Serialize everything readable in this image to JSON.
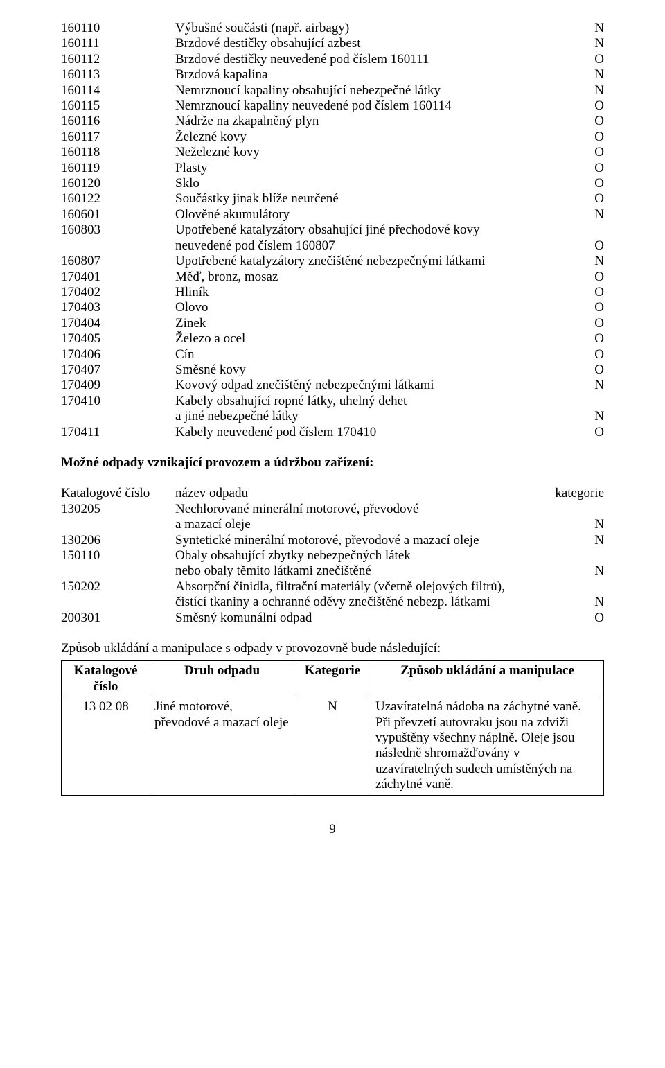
{
  "listA": [
    {
      "code": "160110",
      "desc": "Výbušné součásti (např. airbagy)",
      "cat": "N"
    },
    {
      "code": "160111",
      "desc": "Brzdové destičky obsahující azbest",
      "cat": "N"
    },
    {
      "code": "160112",
      "desc": "Brzdové destičky neuvedené pod číslem 160111",
      "cat": "O"
    },
    {
      "code": "160113",
      "desc": "Brzdová kapalina",
      "cat": "N"
    },
    {
      "code": "160114",
      "desc": "Nemrznoucí kapaliny obsahující nebezpečné látky",
      "cat": "N"
    },
    {
      "code": "160115",
      "desc": "Nemrznoucí kapaliny neuvedené pod číslem 160114",
      "cat": "O"
    },
    {
      "code": "160116",
      "desc": "Nádrže na zkapalněný plyn",
      "cat": "O"
    },
    {
      "code": "160117",
      "desc": "Železné kovy",
      "cat": "O"
    },
    {
      "code": "160118",
      "desc": "Neželezné kovy",
      "cat": "O"
    },
    {
      "code": "160119",
      "desc": "Plasty",
      "cat": "O"
    },
    {
      "code": "160120",
      "desc": "Sklo",
      "cat": "O"
    },
    {
      "code": "160122",
      "desc": "Součástky jinak blíže neurčené",
      "cat": "O"
    },
    {
      "code": "160601",
      "desc": "Olověné akumulátory",
      "cat": "N"
    },
    {
      "code": "160803",
      "desc": "Upotřebené katalyzátory obsahující jiné přechodové kovy",
      "cat": ""
    },
    {
      "code": "",
      "desc": "neuvedené pod číslem 160807",
      "cat": "O",
      "indent": true
    },
    {
      "code": "160807",
      "desc": "Upotřebené katalyzátory znečištěné nebezpečnými látkami",
      "cat": "N"
    },
    {
      "code": "170401",
      "desc": "Měď, bronz, mosaz",
      "cat": "O"
    },
    {
      "code": "170402",
      "desc": "Hliník",
      "cat": "O"
    },
    {
      "code": "170403",
      "desc": "Olovo",
      "cat": "O"
    },
    {
      "code": "170404",
      "desc": "Zinek",
      "cat": "O"
    },
    {
      "code": "170405",
      "desc": "Železo a ocel",
      "cat": "O"
    },
    {
      "code": "170406",
      "desc": "Cín",
      "cat": "O"
    },
    {
      "code": "170407",
      "desc": "Směsné kovy",
      "cat": "O"
    },
    {
      "code": "170409",
      "desc": "Kovový odpad znečištěný nebezpečnými látkami",
      "cat": "N"
    },
    {
      "code": "170410",
      "desc": "Kabely obsahující ropné látky, uhelný dehet",
      "cat": ""
    },
    {
      "code": "",
      "desc": "a jiné nebezpečné látky",
      "cat": "N",
      "indent": true
    },
    {
      "code": "170411",
      "desc": "Kabely neuvedené pod číslem 170410",
      "cat": "O"
    }
  ],
  "headingB": "Možné odpady vznikající provozem a údržbou zařízení:",
  "headerRow": {
    "c1": "Katalogové číslo",
    "c2": "název odpadu",
    "c3": "kategorie"
  },
  "listB": [
    {
      "code": "130205",
      "desc": "Nechlorované minerální motorové, převodové",
      "cat": ""
    },
    {
      "code": "",
      "desc": "a mazací oleje",
      "cat": "N",
      "indent": true
    },
    {
      "code": "130206",
      "desc": "Syntetické minerální motorové, převodové a mazací oleje",
      "cat": "N"
    },
    {
      "code": "150110",
      "desc": "Obaly obsahující zbytky nebezpečných látek",
      "cat": ""
    },
    {
      "code": "",
      "desc": "nebo obaly těmito látkami znečištěné",
      "cat": "N",
      "indent": true
    },
    {
      "code": "150202",
      "desc": "Absorpční činidla, filtrační materiály (včetně olejových filtrů),",
      "cat": ""
    },
    {
      "code": "",
      "desc": "čistící tkaniny a ochranné oděvy znečištěné nebezp. látkami",
      "cat": "N",
      "indent": true
    },
    {
      "code": "200301",
      "desc": "Směsný komunální odpad",
      "cat": "O"
    }
  ],
  "tableIntro": "Způsob ukládání a manipulace s odpady v provozovně bude následující:",
  "table": {
    "headers": [
      "Katalogové číslo",
      "Druh odpadu",
      "Kategorie",
      "Způsob ukládání a manipulace"
    ],
    "row": {
      "c1": "13 02 08",
      "c2": "Jiné motorové, převodové a mazací oleje",
      "c3": "N",
      "c4": "Uzavíratelná nádoba na záchytné vaně. Při převzetí autovraku jsou na zdviži vypuštěny všechny náplně. Oleje jsou následně shromažďovány v uzavíratelných sudech umístěných na záchytné vaně."
    }
  },
  "pageNumber": "9"
}
